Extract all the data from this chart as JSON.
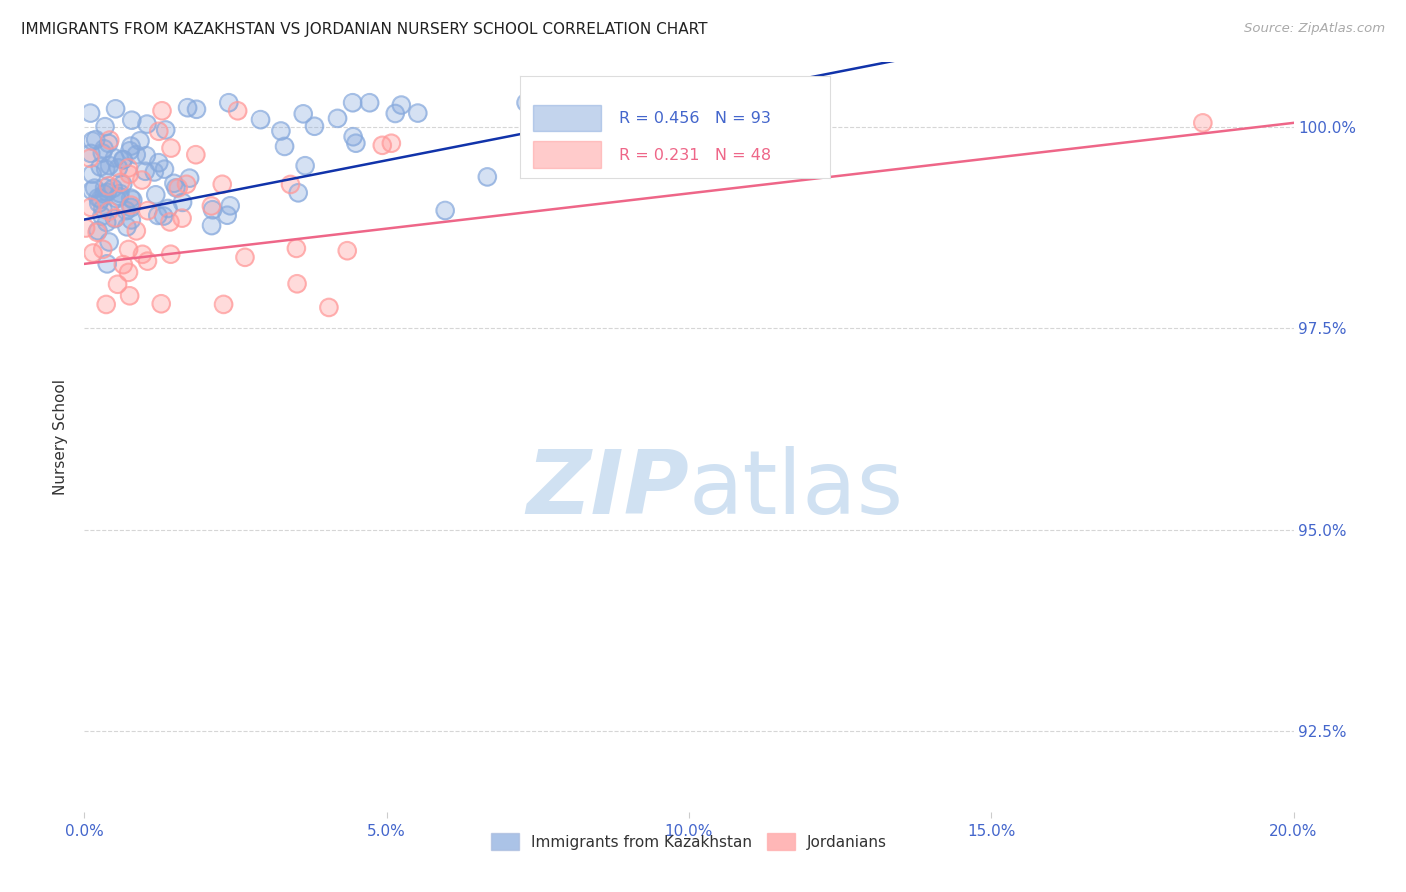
{
  "title": "IMMIGRANTS FROM KAZAKHSTAN VS JORDANIAN NURSERY SCHOOL CORRELATION CHART",
  "source": "Source: ZipAtlas.com",
  "ylabel": "Nursery School",
  "xlim": [
    0.0,
    20.0
  ],
  "ylim": [
    91.5,
    100.8
  ],
  "yticks": [
    92.5,
    95.0,
    97.5,
    100.0
  ],
  "xticks": [
    0.0,
    5.0,
    10.0,
    15.0,
    20.0
  ],
  "blue_label": "Immigrants from Kazakhstan",
  "pink_label": "Jordanians",
  "blue_R": 0.456,
  "blue_N": 93,
  "pink_R": 0.231,
  "pink_N": 48,
  "blue_color": "#88AADD",
  "pink_color": "#FF9999",
  "blue_line_color": "#1133AA",
  "pink_line_color": "#EE6688",
  "background_color": "#FFFFFF",
  "grid_color": "#CCCCCC",
  "axis_label_color": "#4466CC",
  "title_color": "#222222",
  "watermark_color": "#C8DCF0",
  "legend_border_color": "#DDDDDD",
  "blue_trend_x0": 0.0,
  "blue_trend_y0": 98.85,
  "blue_trend_x1": 8.5,
  "blue_trend_y1": 100.1,
  "pink_trend_x0": 0.0,
  "pink_trend_y0": 98.3,
  "pink_trend_x1": 20.0,
  "pink_trend_y1": 100.05
}
